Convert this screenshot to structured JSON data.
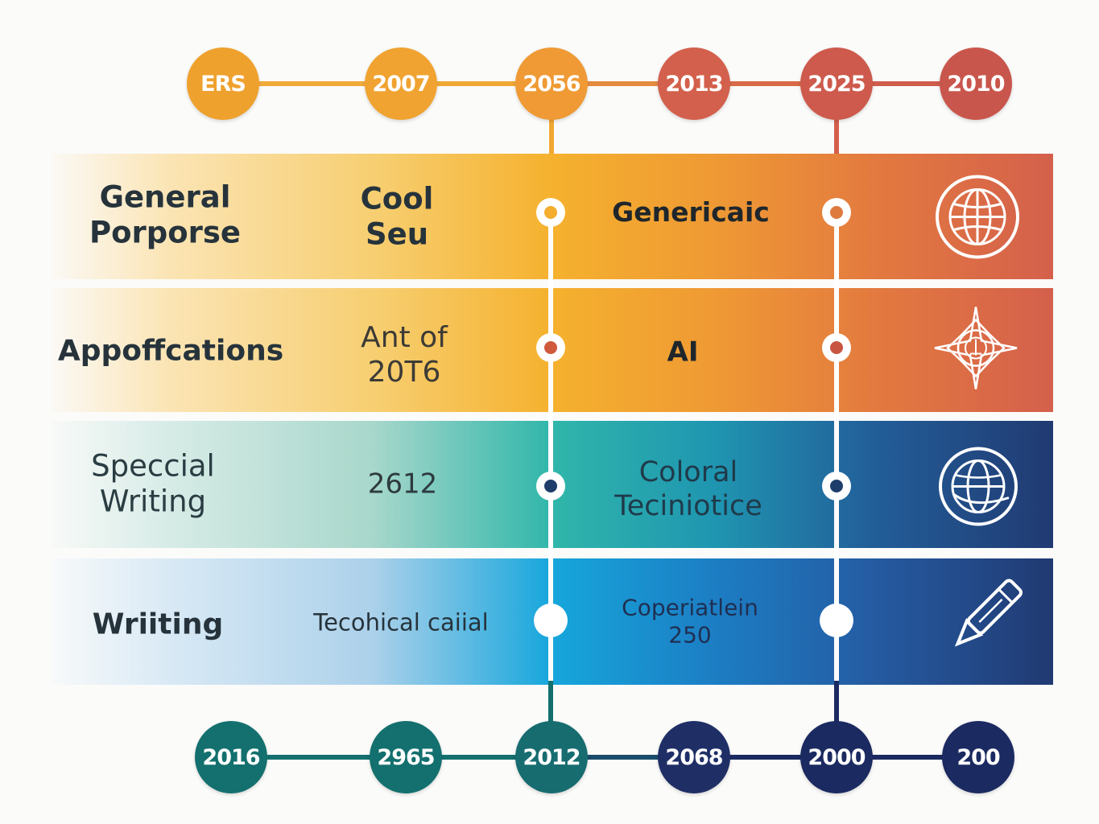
{
  "top_nodes": [
    {
      "label": "ERS",
      "color": "#efa12e"
    },
    {
      "label": "2007",
      "color": "#f0a330"
    },
    {
      "label": "2056",
      "color": "#ef9a34"
    },
    {
      "label": "2013",
      "color": "#d3604c"
    },
    {
      "label": "2025",
      "color": "#cd5a4c"
    },
    {
      "label": "2010",
      "color": "#c9564c"
    }
  ],
  "bottom_nodes": [
    {
      "label": "2016",
      "color": "#13706e"
    },
    {
      "label": "2965",
      "color": "#13706e"
    },
    {
      "label": "2012",
      "color": "#176c70"
    },
    {
      "label": "2068",
      "color": "#1f2f66"
    },
    {
      "label": "2000",
      "color": "#1b2a60"
    },
    {
      "label": "200",
      "color": "#1b2a60"
    }
  ],
  "rows": [
    {
      "category": "General\nPorporse",
      "col2": "Cool\nSeu",
      "col3": "Genericaic",
      "icon": "globe-icon"
    },
    {
      "category": "Appoffcations",
      "col2": "Ant of\n20T6",
      "col3": "AI",
      "icon": "compass-star-icon"
    },
    {
      "category": "Speccial\nWriting",
      "col2": "2612",
      "col3": "Coloral\nTeciniotice",
      "icon": "globe-outline-icon"
    },
    {
      "category": "Wriiting",
      "col2": "Tecohical caiial",
      "col3": "Coperiatlein\n250",
      "icon": "pen-icon"
    }
  ],
  "colors": {
    "warm_line": "#f0a834",
    "red_line": "#d4604c",
    "teal_line": "#13706e",
    "navy_line": "#1b2a60",
    "dot_red": "#cf5a3c",
    "dot_navy": "#1e3d6b"
  }
}
